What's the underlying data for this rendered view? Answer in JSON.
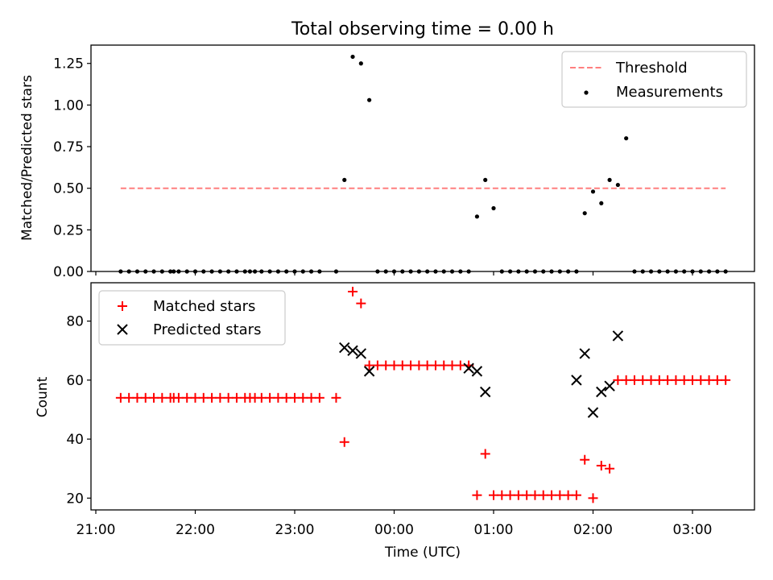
{
  "chart_data": [
    {
      "type": "scatter",
      "title": "Total observing time = 0.00 h",
      "xlabel": "",
      "ylabel": "Matched/Predicted stars",
      "ylim": [
        0,
        1.36
      ],
      "yticks": [
        0.0,
        0.25,
        0.5,
        0.75,
        1.0,
        1.25
      ],
      "ytick_labels": [
        "0.00",
        "0.25",
        "0.50",
        "0.75",
        "1.00",
        "1.25"
      ],
      "legend_position": "top-right",
      "colors": {
        "threshold": "#ff7f7f",
        "measurements": "#000000"
      },
      "threshold": {
        "name": "Threshold",
        "value": 0.5
      },
      "series": [
        {
          "name": "Measurements",
          "x": [
            "21:15",
            "21:20",
            "21:25",
            "21:30",
            "21:35",
            "21:40",
            "21:45",
            "21:47",
            "21:50",
            "21:55",
            "22:00",
            "22:05",
            "22:10",
            "22:15",
            "22:20",
            "22:25",
            "22:30",
            "22:33",
            "22:36",
            "22:40",
            "22:45",
            "22:50",
            "22:55",
            "23:00",
            "23:05",
            "23:10",
            "23:15",
            "23:25",
            "23:30",
            "23:35",
            "23:40",
            "23:45",
            "23:50",
            "23:55",
            "00:00",
            "00:05",
            "00:10",
            "00:15",
            "00:20",
            "00:25",
            "00:30",
            "00:35",
            "00:40",
            "00:45",
            "00:50",
            "00:55",
            "01:00",
            "01:05",
            "01:10",
            "01:15",
            "01:20",
            "01:25",
            "01:30",
            "01:35",
            "01:40",
            "01:45",
            "01:50",
            "01:55",
            "02:00",
            "02:05",
            "02:10",
            "02:15",
            "02:20",
            "02:25",
            "02:30",
            "02:35",
            "02:40",
            "02:45",
            "02:50",
            "02:55",
            "03:00",
            "03:05",
            "03:10",
            "03:15",
            "03:20"
          ],
          "y": [
            0,
            0,
            0,
            0,
            0,
            0,
            0,
            0,
            0,
            0,
            0,
            0,
            0,
            0,
            0,
            0,
            0,
            0,
            0,
            0,
            0,
            0,
            0,
            0,
            0,
            0,
            0,
            0,
            0.55,
            1.29,
            1.25,
            1.03,
            0,
            0,
            0,
            0,
            0,
            0,
            0,
            0,
            0,
            0,
            0,
            0,
            0.33,
            0.55,
            0.38,
            0,
            0,
            0,
            0,
            0,
            0,
            0,
            0,
            0,
            0,
            0.35,
            0.48,
            0.41,
            0.55,
            0.52,
            0.8,
            0,
            0,
            0,
            0,
            0,
            0,
            0,
            0,
            0,
            0,
            0,
            0
          ]
        }
      ]
    },
    {
      "type": "scatter",
      "title": "",
      "xlabel": "Time (UTC)",
      "ylabel": "Count",
      "ylim": [
        16,
        93
      ],
      "yticks": [
        20,
        40,
        60,
        80
      ],
      "xlim": [
        "21:00",
        "03:20"
      ],
      "xticks": [
        "21:00",
        "22:00",
        "23:00",
        "00:00",
        "01:00",
        "02:00",
        "03:00"
      ],
      "legend_position": "top-left",
      "colors": {
        "matched": "#ff0000",
        "predicted": "#000000"
      },
      "series": [
        {
          "name": "Matched stars",
          "marker": "+",
          "x": [
            "21:15",
            "21:20",
            "21:25",
            "21:30",
            "21:35",
            "21:40",
            "21:45",
            "21:47",
            "21:50",
            "21:55",
            "22:00",
            "22:05",
            "22:10",
            "22:15",
            "22:20",
            "22:25",
            "22:30",
            "22:33",
            "22:36",
            "22:40",
            "22:45",
            "22:50",
            "22:55",
            "23:00",
            "23:05",
            "23:10",
            "23:15",
            "23:25",
            "23:30",
            "23:35",
            "23:40",
            "23:45",
            "23:50",
            "23:55",
            "00:00",
            "00:05",
            "00:10",
            "00:15",
            "00:20",
            "00:25",
            "00:30",
            "00:35",
            "00:40",
            "00:45",
            "00:50",
            "00:55",
            "01:00",
            "01:05",
            "01:10",
            "01:15",
            "01:20",
            "01:25",
            "01:30",
            "01:35",
            "01:40",
            "01:45",
            "01:50",
            "01:55",
            "02:00",
            "02:05",
            "02:10",
            "02:15",
            "02:20",
            "02:25",
            "02:30",
            "02:35",
            "02:40",
            "02:45",
            "02:50",
            "02:55",
            "03:00",
            "03:05",
            "03:10",
            "03:15",
            "03:20"
          ],
          "y": [
            54,
            54,
            54,
            54,
            54,
            54,
            54,
            54,
            54,
            54,
            54,
            54,
            54,
            54,
            54,
            54,
            54,
            54,
            54,
            54,
            54,
            54,
            54,
            54,
            54,
            54,
            54,
            54,
            39,
            90,
            86,
            65,
            65,
            65,
            65,
            65,
            65,
            65,
            65,
            65,
            65,
            65,
            65,
            65,
            21,
            35,
            21,
            21,
            21,
            21,
            21,
            21,
            21,
            21,
            21,
            21,
            21,
            33,
            20,
            31,
            30,
            60,
            60,
            60,
            60,
            60,
            60,
            60,
            60,
            60,
            60,
            60,
            60,
            60,
            60
          ]
        },
        {
          "name": "Predicted stars",
          "marker": "x",
          "x": [
            "23:30",
            "23:35",
            "23:40",
            "23:45",
            "00:45",
            "00:50",
            "00:55",
            "01:50",
            "01:55",
            "02:00",
            "02:05",
            "02:10",
            "02:15"
          ],
          "y": [
            71,
            70,
            69,
            63,
            64,
            63,
            56,
            60,
            69,
            49,
            56,
            58,
            75
          ]
        }
      ]
    }
  ]
}
